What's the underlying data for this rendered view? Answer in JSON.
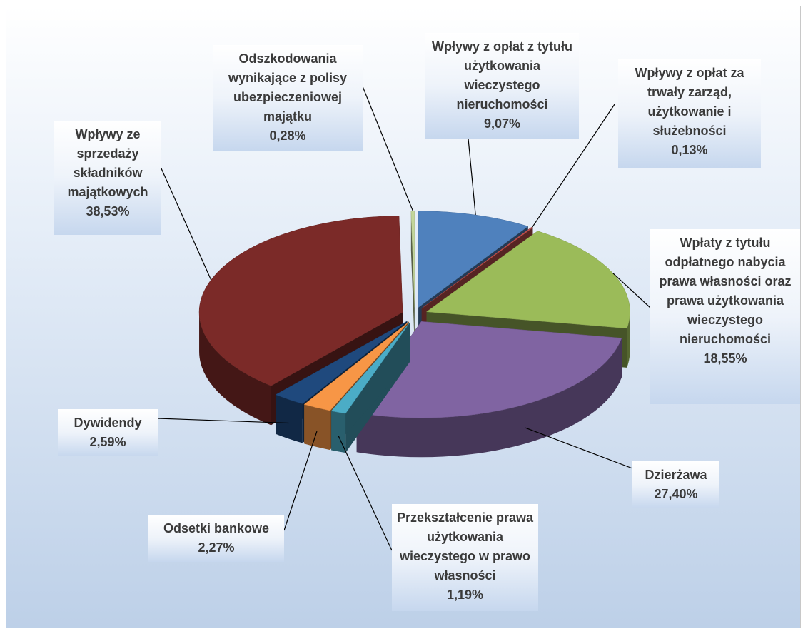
{
  "chart_data": {
    "type": "pie3d",
    "categories": [
      "Wpływy z opłat z tytułu użytkowania wieczystego nieruchomości",
      "Wpływy z opłat za trwały zarząd, użytkowanie i służebności",
      "Wpłaty z tytułu odpłatnego nabycia prawa własności oraz prawa użytkowania wieczystego nieruchomości",
      "Dzierżawa",
      "Przekształcenie prawa użytkowania wieczystego w prawo własności",
      "Odsetki bankowe",
      "Dywidendy",
      "Wpływy ze sprzedaży składników majątkowych",
      "Odszkodowania wynikające z polisy ubezpieczeniowej majątku"
    ],
    "values": [
      9.07,
      0.13,
      18.55,
      27.4,
      1.19,
      2.27,
      2.59,
      38.53,
      0.28
    ],
    "value_labels": [
      "9,07%",
      "0,13%",
      "18,55%",
      "27,40%",
      "1,19%",
      "2,27%",
      "2,59%",
      "38,53%",
      "0,28%"
    ],
    "colors": [
      "#4f81bd",
      "#c0504d",
      "#9bbb59",
      "#8064a2",
      "#4bacc6",
      "#f79646",
      "#1f497d",
      "#7b2a28",
      "#c3d69b"
    ]
  }
}
